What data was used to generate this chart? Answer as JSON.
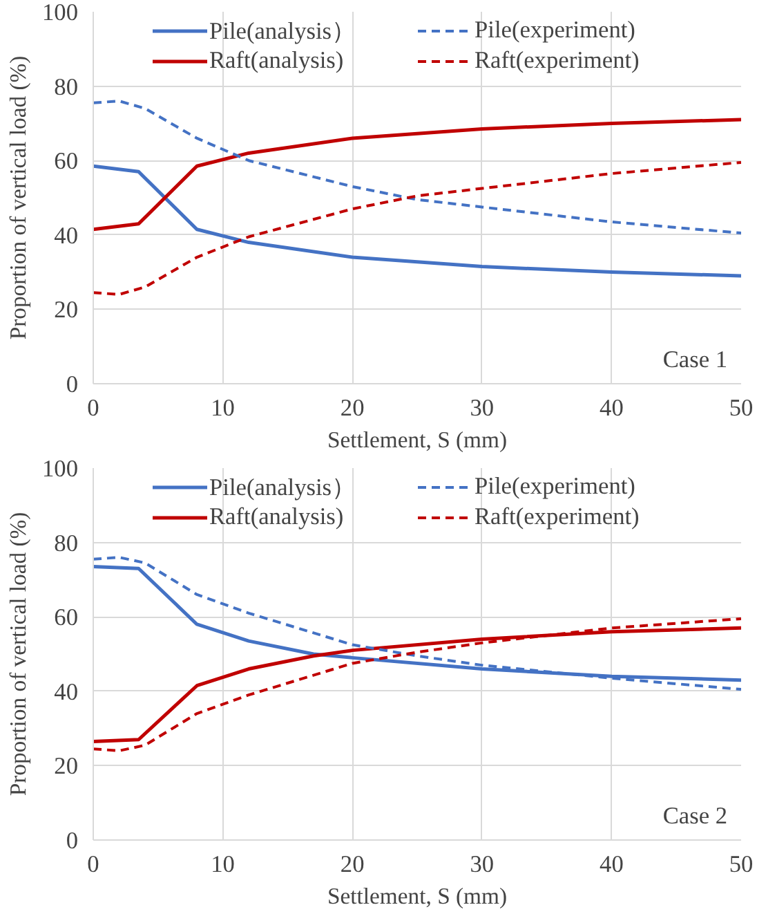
{
  "chart_data": [
    {
      "type": "line",
      "xlabel": "Settlement, S (mm)",
      "ylabel": "Proportion of vertical load (%)",
      "xlim": [
        0,
        50
      ],
      "ylim": [
        0,
        100
      ],
      "xticks": [
        0,
        10,
        20,
        30,
        40,
        50
      ],
      "yticks": [
        0,
        20,
        40,
        60,
        80,
        100
      ],
      "grid": true,
      "legend": "top",
      "marker": "none",
      "annotations": [
        "Case 1"
      ],
      "series": [
        {
          "name": "Pile(analysis）",
          "color": "#4472c4",
          "line_style": "solid",
          "x": [
            0,
            3.5,
            8,
            12,
            20,
            30,
            40,
            50
          ],
          "values": [
            58.5,
            57,
            41.5,
            38,
            34,
            31.5,
            30,
            29
          ]
        },
        {
          "name": "Raft(analysis)",
          "color": "#c00000",
          "line_style": "solid",
          "x": [
            0,
            3.5,
            8,
            12,
            20,
            30,
            40,
            50
          ],
          "values": [
            41.5,
            43,
            58.5,
            62,
            66,
            68.5,
            70,
            71
          ]
        },
        {
          "name": "Pile(experiment)",
          "color": "#4472c4",
          "line_style": "dashed",
          "x": [
            0,
            2,
            4,
            8,
            12,
            20,
            25,
            30,
            40,
            50
          ],
          "values": [
            75.5,
            76,
            74,
            66,
            60,
            53,
            49.5,
            47.5,
            43.5,
            40.5
          ]
        },
        {
          "name": "Raft(experiment)",
          "color": "#c00000",
          "line_style": "dashed",
          "x": [
            0,
            2,
            4,
            8,
            12,
            20,
            25,
            30,
            40,
            50
          ],
          "values": [
            24.5,
            24,
            26,
            34,
            39.5,
            47,
            50.5,
            52.5,
            56.5,
            59.5
          ]
        }
      ]
    },
    {
      "type": "line",
      "xlabel": "Settlement, S (mm)",
      "ylabel": "Proportion of vertical load (%)",
      "xlim": [
        0,
        50
      ],
      "ylim": [
        0,
        100
      ],
      "xticks": [
        0,
        10,
        20,
        30,
        40,
        50
      ],
      "yticks": [
        0,
        20,
        40,
        60,
        80,
        100
      ],
      "grid": true,
      "legend": "top",
      "marker": "none",
      "annotations": [
        "Case 2"
      ],
      "series": [
        {
          "name": "Pile(analysis）",
          "color": "#4472c4",
          "line_style": "solid",
          "x": [
            0,
            3.5,
            8,
            12,
            17,
            20,
            30,
            40,
            50
          ],
          "values": [
            73.5,
            73,
            58,
            53.5,
            50,
            49,
            46,
            44,
            43
          ]
        },
        {
          "name": "Raft(analysis)",
          "color": "#c00000",
          "line_style": "solid",
          "x": [
            0,
            3.5,
            8,
            12,
            17,
            20,
            30,
            40,
            50
          ],
          "values": [
            26.5,
            27,
            41.5,
            46,
            49.5,
            51,
            54,
            56,
            57
          ]
        },
        {
          "name": "Pile(experiment)",
          "color": "#4472c4",
          "line_style": "dashed",
          "x": [
            0,
            2,
            4,
            8,
            12,
            20,
            25,
            30,
            40,
            50
          ],
          "values": [
            75.5,
            76,
            74.5,
            66,
            61,
            52.5,
            49.5,
            47,
            43.5,
            40.5
          ]
        },
        {
          "name": "Raft(experiment)",
          "color": "#c00000",
          "line_style": "dashed",
          "x": [
            0,
            2,
            4,
            8,
            12,
            20,
            25,
            30,
            40,
            50
          ],
          "values": [
            24.5,
            24,
            25.5,
            34,
            39,
            47.5,
            50.5,
            53,
            57,
            59.5
          ]
        }
      ]
    }
  ]
}
